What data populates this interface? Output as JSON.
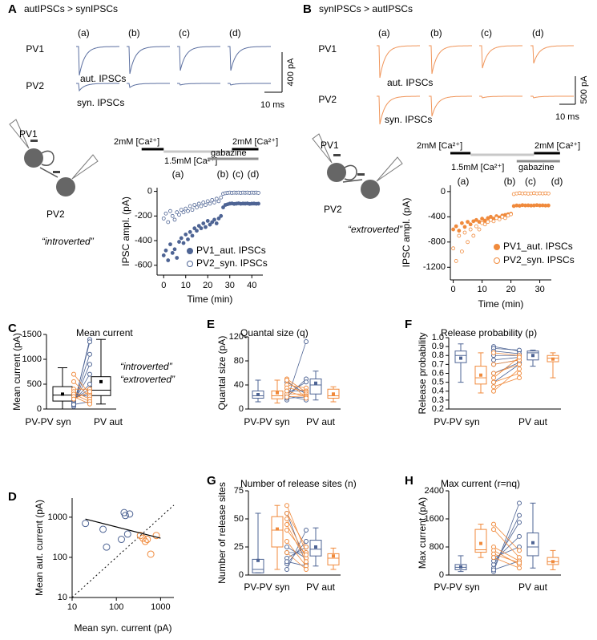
{
  "chart_data": [
    {
      "type": "traces",
      "panel": "A",
      "title": "autIPSCs > synIPSCs",
      "sweeps": [
        "(a)",
        "(b)",
        "(c)",
        "(d)"
      ],
      "rows": [
        "PV1",
        "PV2"
      ],
      "trace_labels": [
        "aut. IPSCs",
        "syn. IPSCs"
      ],
      "scale_labels": [
        "400 pA",
        "10 ms"
      ],
      "color": "#5b6fa0"
    },
    {
      "type": "timecourse",
      "cartoon": [
        "PV1",
        "PV2"
      ],
      "caption": "“introverted”",
      "caption_color": "#4e6494",
      "protocol": [
        {
          "label": "2mM [Ca²⁺]",
          "start": -10,
          "end": 0,
          "color": "#000000"
        },
        {
          "label": "1.5mM [Ca²⁺]",
          "start": 0,
          "end": 31,
          "color": "#c8c8c8"
        },
        {
          "label": "gabazine",
          "start": 20,
          "end": 43,
          "color": "#8c8c8c"
        },
        {
          "label": "2mM [Ca²⁺]",
          "start": 31,
          "end": 43,
          "color": "#000000"
        }
      ],
      "epochs": [
        "(a)",
        "(b)",
        "(c)",
        "(d)"
      ],
      "xlabel": "Time (min)",
      "ylabel": "IPSC ampl. (pA)",
      "xlim": [
        -3,
        45
      ],
      "ylim": [
        -680,
        30
      ],
      "xticks": [
        0,
        10,
        20,
        30,
        40
      ],
      "yticks": [
        -600,
        -400,
        -200,
        0
      ],
      "x": [
        0,
        1,
        2,
        3,
        4,
        5,
        6,
        7,
        8,
        9,
        10,
        11,
        12,
        13,
        14,
        15,
        16,
        17,
        18,
        19,
        20,
        21,
        22,
        23,
        24,
        25,
        26,
        27,
        28,
        29,
        30,
        31,
        32,
        33,
        34,
        35,
        36,
        37,
        38,
        39,
        40,
        41,
        42,
        43
      ],
      "series": [
        {
          "name": "PV1_aut. IPSCs",
          "color": "#4e6494",
          "filled": true,
          "values": [
            -520,
            -480,
            -560,
            -430,
            -500,
            -470,
            -540,
            -410,
            -380,
            -420,
            -350,
            -390,
            -330,
            -360,
            -300,
            -320,
            -280,
            -300,
            -260,
            -290,
            -240,
            -270,
            -250,
            -230,
            -260,
            -220,
            -200,
            -130,
            -110,
            -105,
            -100,
            -98,
            -102,
            -100,
            -97,
            -101,
            -99,
            -100,
            -98,
            -102,
            -100,
            -99,
            -101,
            -100
          ]
        },
        {
          "name": "PV2_syn. IPSCs",
          "color": "#4e6494",
          "filled": false,
          "values": [
            -220,
            -180,
            -250,
            -160,
            -200,
            -230,
            -170,
            -190,
            -150,
            -170,
            -140,
            -160,
            -120,
            -150,
            -110,
            -130,
            -100,
            -120,
            -90,
            -110,
            -80,
            -100,
            -70,
            -90,
            -60,
            -80,
            -50,
            -20,
            -15,
            -12,
            -10,
            -12,
            -10,
            -11,
            -10,
            -12,
            -10,
            -11,
            -10,
            -12,
            -10,
            -11,
            -10,
            -12
          ]
        }
      ]
    },
    {
      "type": "traces",
      "panel": "B",
      "title": "synIPSCs > autIPSCs",
      "sweeps": [
        "(a)",
        "(b)",
        "(c)",
        "(d)"
      ],
      "rows": [
        "PV1",
        "PV2"
      ],
      "trace_labels": [
        "aut. IPSCs",
        "syn. IPSCs"
      ],
      "scale_labels": [
        "500 pA",
        "10 ms"
      ],
      "color": "#f0955a"
    },
    {
      "type": "timecourse",
      "cartoon": [
        "PV1",
        "PV2"
      ],
      "caption": "“extroverted”",
      "caption_color": "#f08a3c",
      "protocol": [
        {
          "label": "2mM [Ca²⁺]",
          "start": -1,
          "end": 6,
          "color": "#000000"
        },
        {
          "label": "1.5mM [Ca²⁺]",
          "start": 6,
          "end": 28,
          "color": "#c8c8c8"
        },
        {
          "label": "gabazine",
          "start": 22,
          "end": 37,
          "color": "#8c8c8c"
        },
        {
          "label": "2mM [Ca²⁺]",
          "start": 28,
          "end": 37,
          "color": "#000000"
        }
      ],
      "epochs": [
        "(a)",
        "(b)",
        "(c)",
        "(d)"
      ],
      "xlabel": "Time (min)",
      "ylabel": "IPSC ampl. (pA)",
      "xlim": [
        -1,
        34
      ],
      "ylim": [
        -1400,
        100
      ],
      "xticks": [
        0,
        10,
        20,
        30
      ],
      "yticks": [
        -1200,
        -800,
        -400,
        0
      ],
      "x": [
        0,
        1,
        2,
        3,
        4,
        5,
        6,
        7,
        8,
        9,
        10,
        11,
        12,
        13,
        14,
        15,
        16,
        17,
        18,
        19,
        20,
        21,
        22,
        23,
        24,
        25,
        26,
        27,
        28,
        29,
        30,
        31,
        32,
        33
      ],
      "series": [
        {
          "name": "PV1_aut. IPSCs",
          "color": "#f08a3c",
          "filled": true,
          "values": [
            -600,
            -550,
            -620,
            -500,
            -560,
            -480,
            -520,
            -470,
            -450,
            -480,
            -430,
            -460,
            -420,
            -400,
            -430,
            -390,
            -410,
            -380,
            -370,
            -360,
            -350,
            -230,
            -220,
            -225,
            -215,
            -220,
            -218,
            -222,
            -220,
            -215,
            -220,
            -218,
            -222,
            -220
          ]
        },
        {
          "name": "PV2_syn. IPSCs",
          "color": "#f08a3c",
          "filled": false,
          "values": [
            -900,
            -1100,
            -700,
            -950,
            -650,
            -800,
            -600,
            -700,
            -550,
            -600,
            -500,
            -520,
            -480,
            -450,
            -470,
            -420,
            -440,
            -400,
            -420,
            -380,
            -360,
            -40,
            -30,
            -25,
            -30,
            -28,
            -32,
            -30,
            -25,
            -30,
            -28,
            -30,
            -27,
            -30
          ]
        }
      ]
    },
    {
      "type": "box",
      "panel": "C",
      "title": "Mean current",
      "ylabel": "Mean current (pA)",
      "categories": [
        "PV-PV syn",
        "PV aut"
      ],
      "ylim": [
        0,
        1500
      ],
      "yticks": [
        0,
        500,
        1000,
        1500
      ],
      "boxes": [
        {
          "stats": [
            0,
            160,
            280,
            450,
            830
          ],
          "mean": 300,
          "color": "#000000"
        },
        {
          "stats": [
            100,
            270,
            380,
            650,
            1400
          ],
          "mean": 550,
          "color": "#000000"
        }
      ],
      "pairs": [
        {
          "name": "“introverted”",
          "color": "#4e6494",
          "syn": [
            50,
            80,
            100,
            120,
            150,
            180,
            200,
            250,
            300,
            90
          ],
          "aut": [
            1400,
            1350,
            1100,
            900,
            700,
            500,
            400,
            300,
            250,
            150
          ]
        },
        {
          "name": "“extroverted”",
          "color": "#f08a3c",
          "syn": [
            700,
            550,
            400,
            350,
            300,
            250,
            200
          ],
          "aut": [
            300,
            250,
            400,
            200,
            150,
            100,
            350
          ]
        }
      ]
    },
    {
      "type": "scatter",
      "panel": "D",
      "log": true,
      "xlabel": "Mean syn. current (pA)",
      "ylabel": "Mean aut. current (pA)",
      "xlim": [
        10,
        2000
      ],
      "ylim": [
        10,
        3000
      ],
      "xticks": [
        10,
        100,
        1000
      ],
      "yticks": [
        10,
        100,
        1000
      ],
      "identity_line": true,
      "series": [
        {
          "color": "#4e6494",
          "x": [
            20,
            50,
            60,
            150,
            160,
            200,
            180,
            130
          ],
          "values": [
            700,
            500,
            180,
            1300,
            1100,
            1200,
            380,
            280
          ]
        },
        {
          "color": "#f08a3c",
          "x": [
            350,
            400,
            450,
            600,
            800,
            500
          ],
          "values": [
            350,
            300,
            250,
            120,
            350,
            280
          ]
        }
      ],
      "fit": {
        "color": "#000000",
        "x": [
          20,
          1000
        ],
        "values": [
          900,
          300
        ]
      }
    },
    {
      "type": "box",
      "panel": "E",
      "title": "Quantal size (q)",
      "ylabel": "Quantal size (pA)",
      "categories": [
        "PV-PV syn",
        "PV aut"
      ],
      "ylim": [
        0,
        120
      ],
      "yticks": [
        0,
        40,
        80,
        120
      ],
      "boxes": [
        {
          "stats": [
            12,
            18,
            22,
            30,
            48
          ],
          "mean": 24,
          "color": "#4e6494"
        },
        {
          "stats": [
            10,
            17,
            22,
            30,
            48
          ],
          "mean": 27,
          "color": "#f08a3c"
        },
        {
          "stats": [
            15,
            25,
            40,
            50,
            63
          ],
          "mean": 43,
          "color": "#4e6494"
        },
        {
          "stats": [
            12,
            18,
            22,
            33,
            37
          ],
          "mean": 25,
          "color": "#f08a3c"
        }
      ],
      "pairs": [
        {
          "color": "#4e6494",
          "syn": [
            15,
            20,
            25,
            30,
            45,
            18,
            22
          ],
          "aut": [
            112,
            50,
            45,
            30,
            25,
            20,
            15
          ]
        },
        {
          "color": "#f08a3c",
          "syn": [
            40,
            35,
            50,
            25,
            20,
            30,
            48
          ],
          "aut": [
            35,
            30,
            28,
            25,
            22,
            20,
            18
          ]
        }
      ]
    },
    {
      "type": "box",
      "panel": "F",
      "title": "Release probability (p)",
      "ylabel": "Release probability",
      "categories": [
        "PV-PV syn",
        "PV aut"
      ],
      "ylim": [
        0.2,
        1
      ],
      "yticks": [
        0.2,
        0.3,
        0.4,
        0.5,
        0.6,
        0.7,
        0.8,
        0.9,
        {
          "value": 1,
          "label": "1.0"
        }
      ],
      "boxes": [
        {
          "stats": [
            0.5,
            0.72,
            0.8,
            0.85,
            0.93
          ],
          "mean": 0.77,
          "color": "#4e6494"
        },
        {
          "stats": [
            0.38,
            0.48,
            0.55,
            0.68,
            0.83
          ],
          "mean": 0.58,
          "color": "#f08a3c"
        },
        {
          "stats": [
            0.68,
            0.75,
            0.83,
            0.85,
            0.86
          ],
          "mean": 0.8,
          "color": "#4e6494"
        },
        {
          "stats": [
            0.55,
            0.73,
            0.77,
            0.8,
            0.83
          ],
          "mean": 0.76,
          "color": "#f08a3c"
        }
      ],
      "pairs": [
        {
          "color": "#4e6494",
          "syn": [
            0.9,
            0.88,
            0.85,
            0.8,
            0.75,
            0.7,
            0.6,
            0.5
          ],
          "aut": [
            0.85,
            0.86,
            0.82,
            0.8,
            0.78,
            0.75,
            0.72,
            0.7
          ]
        },
        {
          "color": "#f08a3c",
          "syn": [
            0.83,
            0.7,
            0.6,
            0.55,
            0.5,
            0.45,
            0.4
          ],
          "aut": [
            0.8,
            0.75,
            0.7,
            0.78,
            0.6,
            0.55,
            0.65
          ]
        }
      ]
    },
    {
      "type": "box",
      "panel": "G",
      "title": "Number of release sites (n)",
      "ylabel": "Number of release sites",
      "categories": [
        "PV-PV syn",
        "PV aut"
      ],
      "ylim": [
        0,
        75
      ],
      "yticks": [
        0,
        25,
        50,
        75
      ],
      "boxes": [
        {
          "stats": [
            2,
            2,
            5,
            14,
            55
          ],
          "mean": 13,
          "color": "#4e6494"
        },
        {
          "stats": [
            5,
            25,
            40,
            52,
            62
          ],
          "mean": 41,
          "color": "#f08a3c"
        },
        {
          "stats": [
            8,
            17,
            23,
            31,
            42
          ],
          "mean": 25,
          "color": "#4e6494"
        },
        {
          "stats": [
            5,
            9,
            15,
            19,
            24
          ],
          "mean": 17,
          "color": "#f08a3c"
        }
      ],
      "pairs": [
        {
          "color": "#4e6494",
          "syn": [
            5,
            10,
            15,
            20,
            25,
            55,
            12
          ],
          "aut": [
            40,
            30,
            25,
            20,
            15,
            10,
            8
          ]
        },
        {
          "color": "#f08a3c",
          "syn": [
            62,
            55,
            50,
            45,
            40,
            30,
            20
          ],
          "aut": [
            20,
            25,
            15,
            12,
            18,
            8,
            5
          ]
        }
      ]
    },
    {
      "type": "box",
      "panel": "H",
      "title": "Max current (r=nq)",
      "ylabel": "Max current (pA)",
      "categories": [
        "PV-PV syn",
        "PV aut"
      ],
      "ylim": [
        0,
        2400
      ],
      "yticks": [
        0,
        800,
        1600,
        2400
      ],
      "boxes": [
        {
          "stats": [
            100,
            150,
            220,
            300,
            550
          ],
          "mean": 230,
          "color": "#4e6494"
        },
        {
          "stats": [
            500,
            650,
            720,
            1300,
            1450
          ],
          "mean": 900,
          "color": "#f08a3c"
        },
        {
          "stats": [
            200,
            550,
            800,
            1200,
            2050
          ],
          "mean": 920,
          "color": "#4e6494"
        },
        {
          "stats": [
            150,
            300,
            380,
            500,
            700
          ],
          "mean": 380,
          "color": "#f08a3c"
        }
      ],
      "pairs": [
        {
          "color": "#4e6494",
          "syn": [
            100,
            200,
            300,
            400,
            500,
            150
          ],
          "aut": [
            2050,
            1700,
            1500,
            1100,
            800,
            400
          ]
        },
        {
          "color": "#f08a3c",
          "syn": [
            1450,
            1300,
            800,
            700,
            600,
            500
          ],
          "aut": [
            700,
            500,
            400,
            300,
            350,
            200
          ]
        }
      ]
    }
  ]
}
